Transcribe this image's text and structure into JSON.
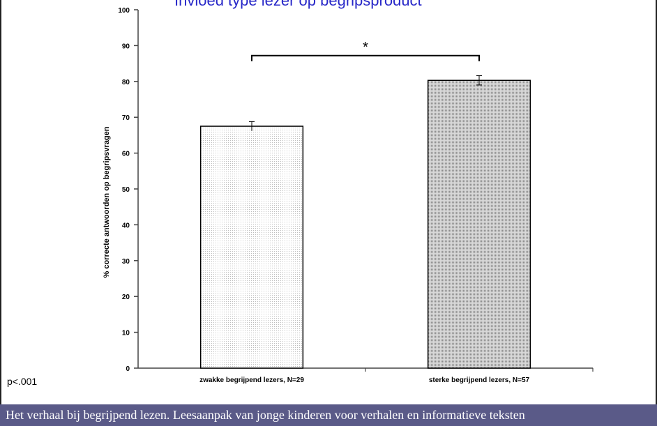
{
  "slide": {
    "title": "Invloed type lezer op begripsproduct",
    "note": "p<.001",
    "footer": "Het verhaal bij begrijpend lezen. Leesaanpak van jonge kinderen voor verhalen en informatieve teksten"
  },
  "chart_data": {
    "type": "bar",
    "title": "Invloed type lezer op begripsproduct",
    "xlabel": "",
    "ylabel": "% correcte antwoorden op begripsvragen",
    "categories": [
      "zwakke begrijpend lezers, N=29",
      "sterke begrijpend lezers, N=57"
    ],
    "values": [
      67.5,
      80.3
    ],
    "errors": [
      1.3,
      1.3
    ],
    "ylim": [
      0,
      100
    ],
    "yticks": [
      0,
      10,
      20,
      30,
      40,
      50,
      60,
      70,
      80,
      90,
      100
    ],
    "grid": false,
    "significance": {
      "label": "*",
      "between": [
        0,
        1
      ]
    },
    "colors": {
      "bar0": "#f4f4f4",
      "bar1": "#c4c4c4",
      "title": "#2828c8",
      "footer_bg": "#5a5a88"
    }
  }
}
